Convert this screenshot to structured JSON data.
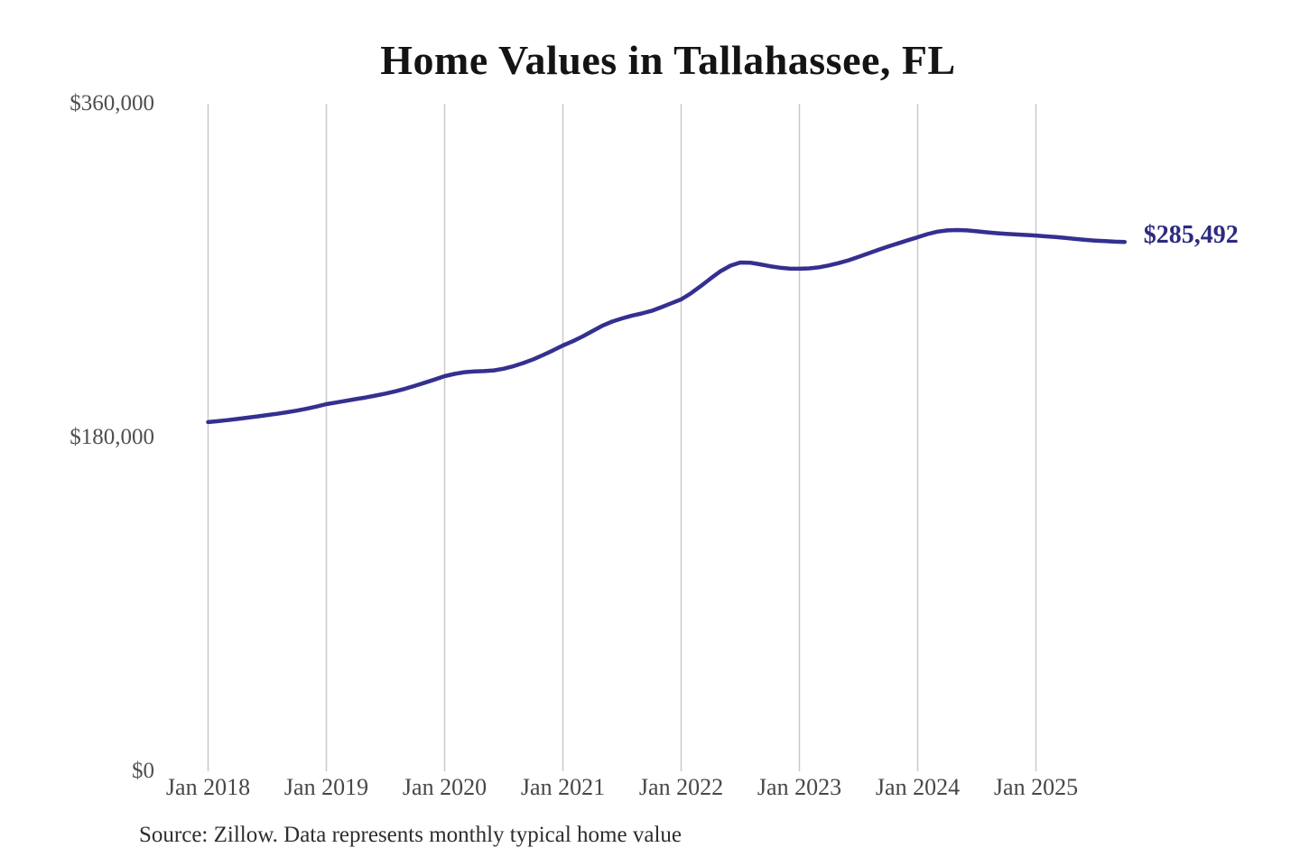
{
  "title": "Home Values in Tallahassee, FL",
  "source_note": "Source: Zillow. Data represents monthly typical home value",
  "colors": {
    "line": "#343090",
    "annotation": "#2d2a80",
    "grid": "#c9c9c9",
    "axis_text": "#4a4a4a",
    "title_text": "#141414"
  },
  "chart_data": {
    "type": "line",
    "title": "Home Values in Tallahassee, FL",
    "xlabel": "",
    "ylabel": "",
    "ylim": [
      0,
      360000
    ],
    "grid": "vertical-only",
    "legend": "none",
    "y_ticks": [
      {
        "value": 0,
        "label": "$0"
      },
      {
        "value": 180000,
        "label": "$180,000"
      },
      {
        "value": 360000,
        "label": "$360,000"
      }
    ],
    "x_tick_labels": [
      "Jan 2018",
      "Jan 2019",
      "Jan 2020",
      "Jan 2021",
      "Jan 2022",
      "Jan 2023",
      "Jan 2024",
      "Jan 2025"
    ],
    "x_start_month": "2018-01",
    "x_end_month": "2025-10",
    "last_value": 285492,
    "last_value_label": "$285,492",
    "series": [
      {
        "name": "Monthly typical home value (USD)",
        "values": [
          188300,
          188800,
          189400,
          190000,
          190700,
          191400,
          192100,
          192800,
          193600,
          194500,
          195500,
          196700,
          198000,
          198900,
          199800,
          200700,
          201600,
          202600,
          203700,
          204900,
          206300,
          207900,
          209600,
          211300,
          213100,
          214300,
          215200,
          215600,
          215800,
          216200,
          217100,
          218500,
          220200,
          222200,
          224500,
          227000,
          229600,
          231900,
          234500,
          237400,
          240300,
          242500,
          244200,
          245700,
          246900,
          248300,
          250300,
          252400,
          254500,
          257800,
          261700,
          265800,
          269700,
          272700,
          274400,
          274300,
          273400,
          272400,
          271600,
          271100,
          271000,
          271200,
          271800,
          272800,
          274100,
          275600,
          277400,
          279300,
          281200,
          283000,
          284700,
          286400,
          288000,
          289700,
          291000,
          291700,
          291900,
          291700,
          291200,
          290700,
          290200,
          289800,
          289500,
          289200,
          288900,
          288500,
          288100,
          287600,
          287100,
          286600,
          286200,
          285900,
          285600,
          285492
        ]
      }
    ]
  }
}
